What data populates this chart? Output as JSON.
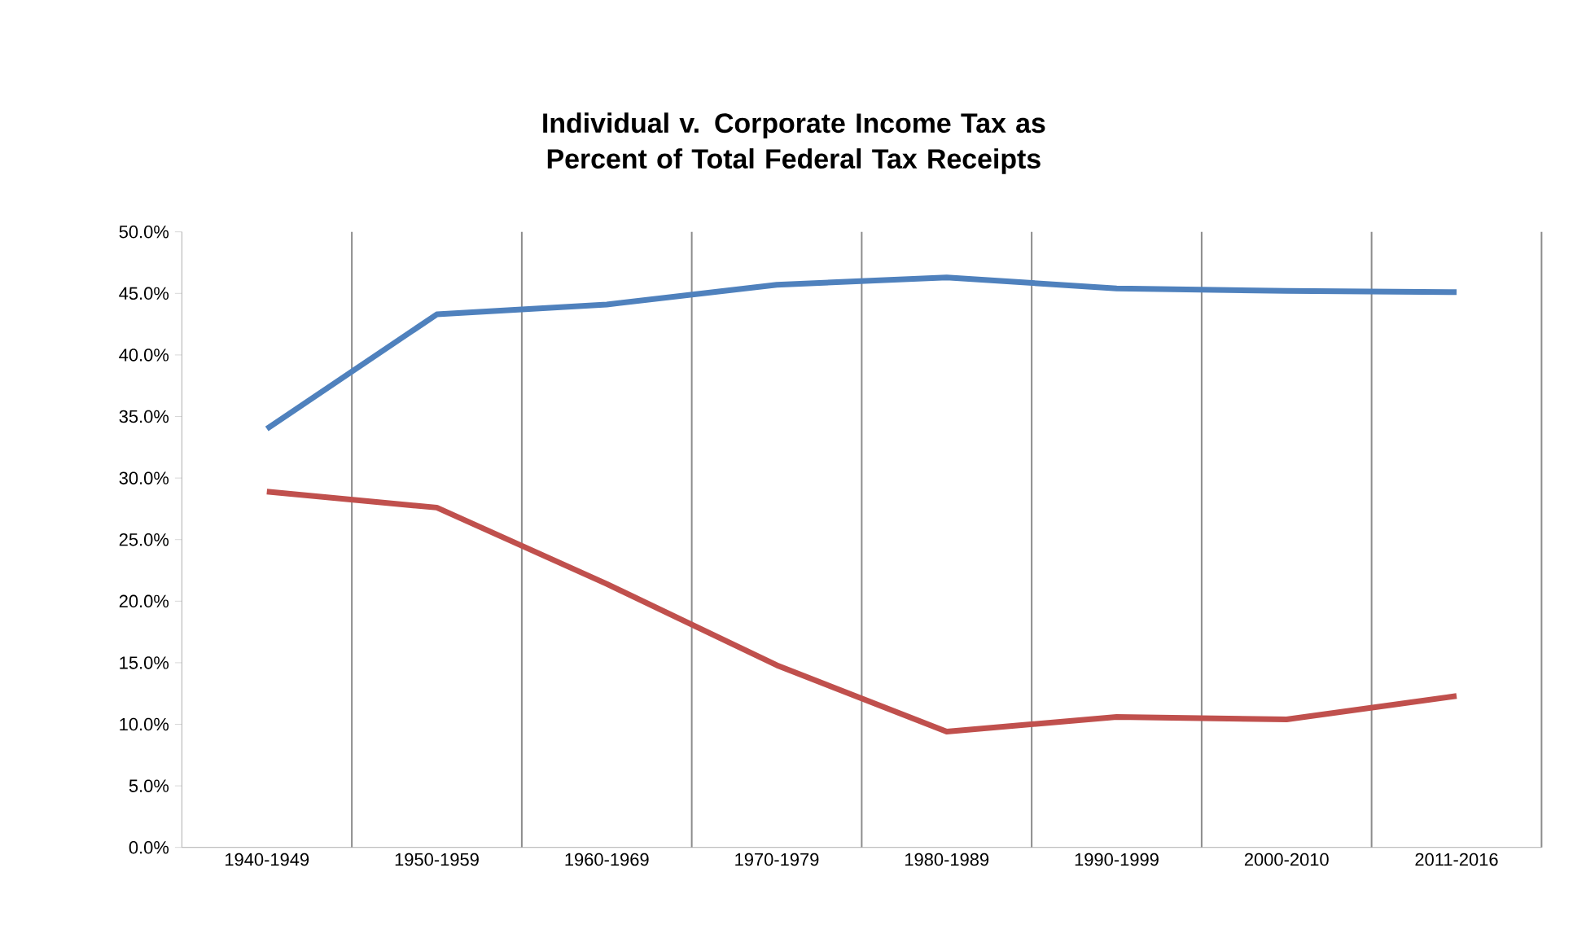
{
  "chart_data": {
    "type": "line",
    "title": "Individual v. Corporate Income Tax as Percent of Total Federal Tax Receipts",
    "categories": [
      "1940-1949",
      "1950-1959",
      "1960-1969",
      "1970-1979",
      "1980-1989",
      "1990-1999",
      "2000-2010",
      "2011-2016"
    ],
    "series": [
      {
        "color": "#4f81bd",
        "values": [
          34.0,
          43.3,
          44.1,
          45.7,
          46.3,
          45.4,
          45.2,
          45.1
        ]
      },
      {
        "color": "#c0504d",
        "values": [
          28.9,
          27.6,
          21.4,
          14.8,
          9.4,
          10.6,
          10.4,
          12.3
        ]
      }
    ],
    "ylim": [
      0,
      50
    ],
    "yticks": [
      {
        "value": 0,
        "label": "0.0%"
      },
      {
        "value": 5,
        "label": "5.0%"
      },
      {
        "value": 10,
        "label": "10.0%"
      },
      {
        "value": 15,
        "label": "15.0%"
      },
      {
        "value": 20,
        "label": "20.0%"
      },
      {
        "value": 25,
        "label": "25.0%"
      },
      {
        "value": 30,
        "label": "30.0%"
      },
      {
        "value": 35,
        "label": "35.0%"
      },
      {
        "value": 40,
        "label": "40.0%"
      },
      {
        "value": 45,
        "label": "45.0%"
      },
      {
        "value": 50,
        "label": "50.0%"
      }
    ],
    "grid": "x",
    "marker": "none",
    "line_style": "solid"
  }
}
